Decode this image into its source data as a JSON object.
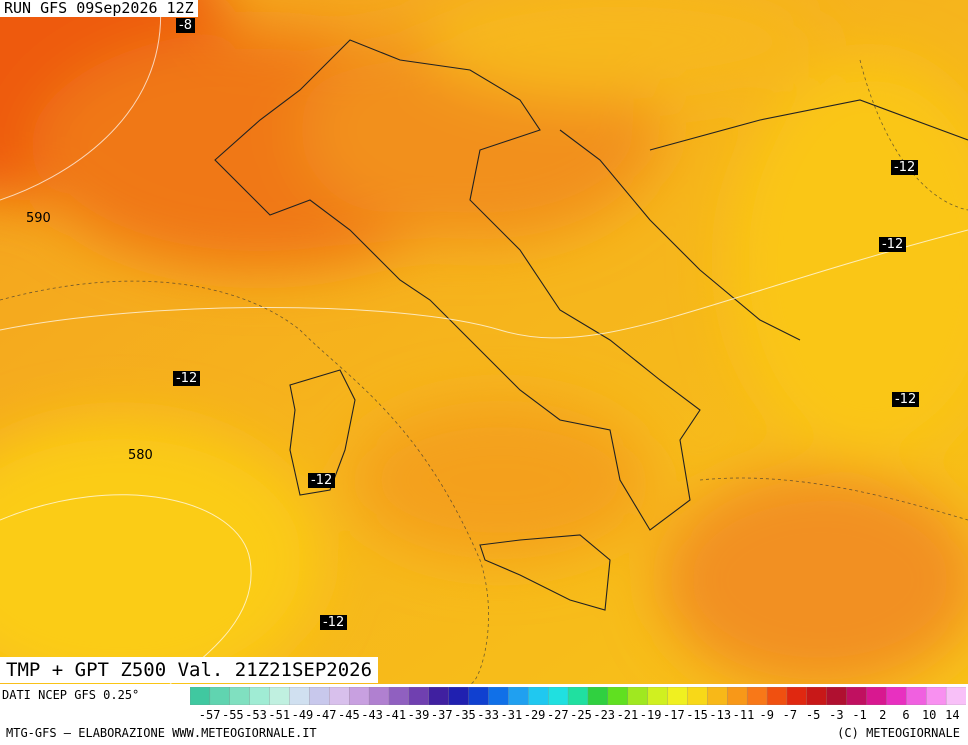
{
  "header": {
    "run": "RUN GFS 09Sep2026 12Z",
    "title": "TMP + GPT Z500 Val. 21Z21SEP2026"
  },
  "contour_labels": [
    "-8",
    "590",
    "-12",
    "-12",
    "-12",
    "-12",
    "580",
    "-12",
    "-12"
  ],
  "colorbar": {
    "labels": [
      "-57",
      "-55",
      "-53",
      "-51",
      "-49",
      "-47",
      "-45",
      "-43",
      "-41",
      "-39",
      "-37",
      "-35",
      "-33",
      "-31",
      "-29",
      "-27",
      "-25",
      "-23",
      "-21",
      "-19",
      "-17",
      "-15",
      "-13",
      "-11",
      "-9",
      "-7",
      "-5",
      "-3",
      "-1",
      "2",
      "6",
      "10",
      "14"
    ],
    "colors": [
      "#40c8a0",
      "#60d4b0",
      "#80e0c0",
      "#a0ecd4",
      "#c0f0e0",
      "#d0e0f0",
      "#c8c8ec",
      "#d8c0ec",
      "#c8a0e0",
      "#b080d0",
      "#9060c0",
      "#7040b0",
      "#4020a0",
      "#2020b0",
      "#1040d0",
      "#1070e8",
      "#20a0f0",
      "#20c8f0",
      "#20e0e0",
      "#20e0a0",
      "#30d040",
      "#60e020",
      "#a0e820",
      "#d0f020",
      "#f0f020",
      "#f8d818",
      "#f8b818",
      "#f89818",
      "#f87818",
      "#f05010",
      "#e02810",
      "#c81818",
      "#b01030",
      "#c01060",
      "#d81890",
      "#e830c0",
      "#f060e0",
      "#f890f0",
      "#f8c0f8"
    ]
  },
  "footer": {
    "source": "DATI NCEP GFS 0.25°",
    "credit": "MTG-GFS — ELABORAZIONE WWW.METEOGIORNALE.IT",
    "copyright": "(C) METEOGIORNALE"
  }
}
